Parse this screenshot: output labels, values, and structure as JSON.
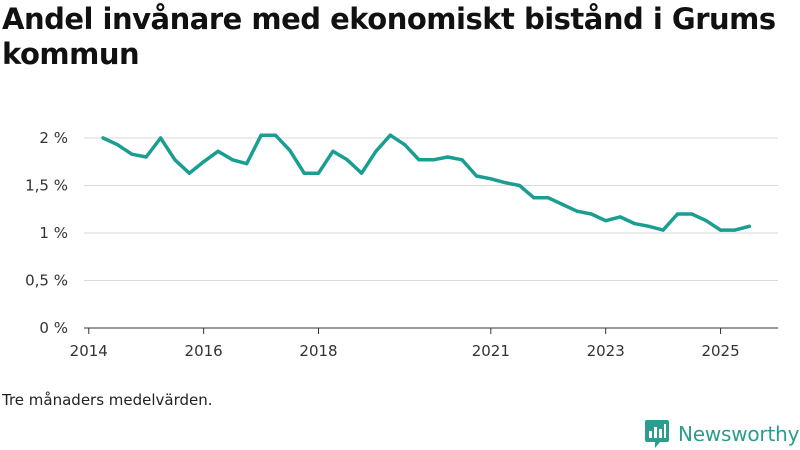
{
  "title": "Andel invånare med ekonomiskt bistånd i Grums kommun",
  "note": "Tre månaders medelvärden.",
  "brand": {
    "name": "Newsworthy",
    "icon": "newsworthy-logo-icon"
  },
  "colors": {
    "line": "#1a9e92",
    "grid": "#d9d9d9",
    "axis": "#333333",
    "brand": "#2a9d8f"
  },
  "chart_data": {
    "type": "line",
    "title": "Andel invånare med ekonomiskt bistånd i Grums kommun",
    "xlabel": "",
    "ylabel": "",
    "xlim": [
      2013.917,
      2026.0
    ],
    "ylim": [
      0,
      2
    ],
    "grid": true,
    "y_ticks": [
      {
        "value": 0,
        "label": "0 %"
      },
      {
        "value": 0.5,
        "label": "0,5 %"
      },
      {
        "value": 1,
        "label": "1 %"
      },
      {
        "value": 1.5,
        "label": "1,5 %"
      },
      {
        "value": 2,
        "label": "2 %"
      }
    ],
    "x_ticks": [
      {
        "value": 2014,
        "label": "2014"
      },
      {
        "value": 2016,
        "label": "2016"
      },
      {
        "value": 2018,
        "label": "2018"
      },
      {
        "value": 2021,
        "label": "2021"
      },
      {
        "value": 2023,
        "label": "2023"
      },
      {
        "value": 2025,
        "label": "2025"
      }
    ],
    "series": [
      {
        "name": "Andel invånare med ekonomiskt bistånd",
        "x": [
          2014.25,
          2014.5,
          2014.75,
          2015.0,
          2015.25,
          2015.5,
          2015.75,
          2016.0,
          2016.25,
          2016.5,
          2016.75,
          2017.0,
          2017.25,
          2017.5,
          2017.75,
          2018.0,
          2018.25,
          2018.5,
          2018.75,
          2019.0,
          2019.25,
          2019.5,
          2019.75,
          2020.0,
          2020.25,
          2020.5,
          2020.75,
          2021.0,
          2021.25,
          2021.5,
          2021.75,
          2022.0,
          2022.25,
          2022.5,
          2022.75,
          2023.0,
          2023.25,
          2023.5,
          2023.75,
          2024.0,
          2024.25,
          2024.5,
          2024.75,
          2025.0,
          2025.25,
          2025.5
        ],
        "values": [
          2.0,
          1.93,
          1.83,
          1.8,
          2.0,
          1.77,
          1.63,
          1.75,
          1.86,
          1.77,
          1.73,
          2.03,
          2.03,
          1.87,
          1.63,
          1.63,
          1.86,
          1.77,
          1.63,
          1.86,
          2.03,
          1.93,
          1.77,
          1.77,
          1.8,
          1.77,
          1.6,
          1.57,
          1.53,
          1.5,
          1.37,
          1.37,
          1.3,
          1.23,
          1.2,
          1.13,
          1.17,
          1.1,
          1.07,
          1.03,
          1.2,
          1.2,
          1.13,
          1.03,
          1.03,
          1.07
        ]
      }
    ]
  }
}
